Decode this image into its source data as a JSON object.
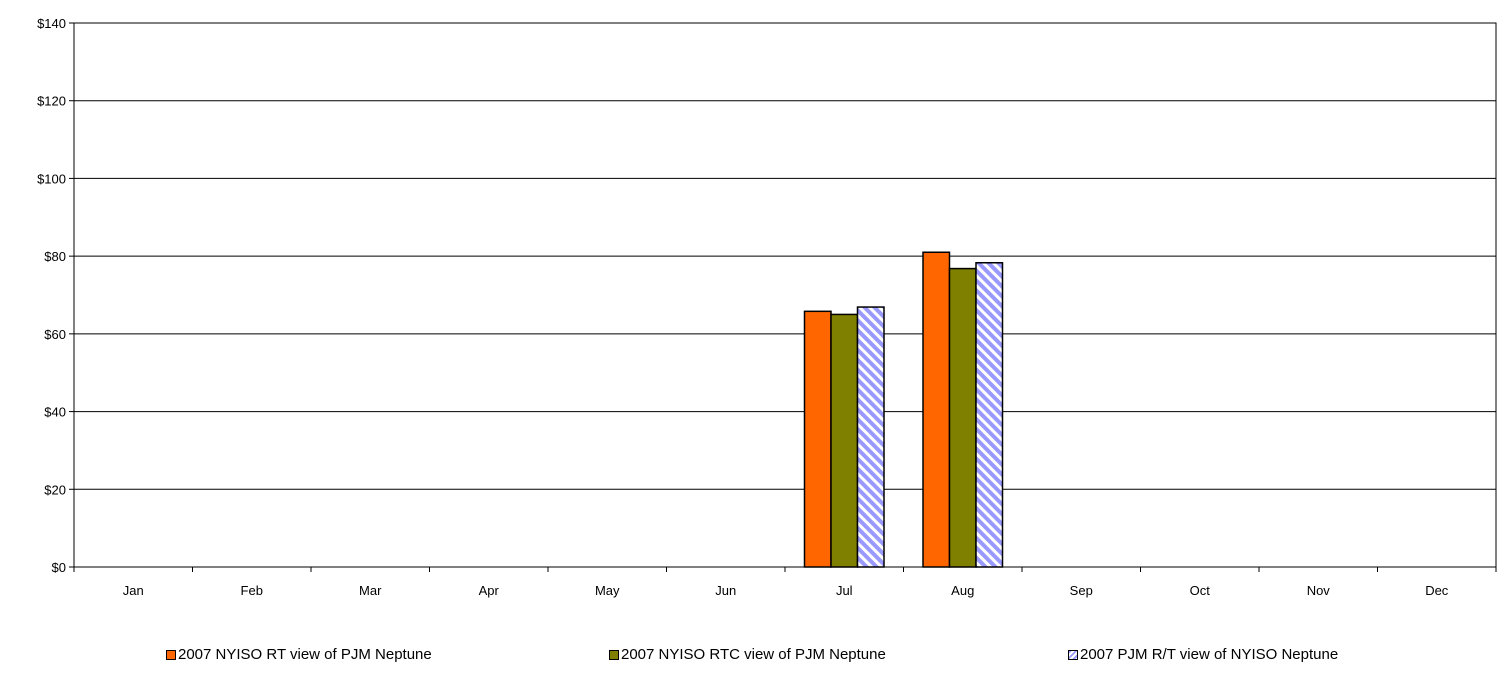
{
  "chart_data": {
    "type": "bar",
    "title": "",
    "xlabel": "",
    "ylabel": "",
    "ylim": [
      0,
      140
    ],
    "yticks": [
      0,
      20,
      40,
      60,
      80,
      100,
      120,
      140
    ],
    "ytick_labels": [
      "$0",
      "$20",
      "$40",
      "$60",
      "$80",
      "$100",
      "$120",
      "$140"
    ],
    "categories": [
      "Jan",
      "Feb",
      "Mar",
      "Apr",
      "May",
      "Jun",
      "Jul",
      "Aug",
      "Sep",
      "Oct",
      "Nov",
      "Dec"
    ],
    "grid": "horizontal",
    "legend_position": "bottom",
    "series": [
      {
        "name": "2007 NYISO RT view of PJM Neptune",
        "color": "#FF6600",
        "pattern": "solid",
        "values": [
          null,
          null,
          null,
          null,
          null,
          null,
          65.8,
          81.0,
          null,
          null,
          null,
          null
        ]
      },
      {
        "name": "2007 NYISO RTC view of PJM Neptune",
        "color": "#808000",
        "pattern": "solid",
        "values": [
          null,
          null,
          null,
          null,
          null,
          null,
          65.0,
          76.8,
          null,
          null,
          null,
          null
        ]
      },
      {
        "name": "2007 PJM R/T view of NYISO Neptune",
        "color": "#9999FF",
        "pattern": "diagonal-stripes",
        "values": [
          null,
          null,
          null,
          null,
          null,
          null,
          66.9,
          78.3,
          null,
          null,
          null,
          null
        ]
      }
    ]
  }
}
